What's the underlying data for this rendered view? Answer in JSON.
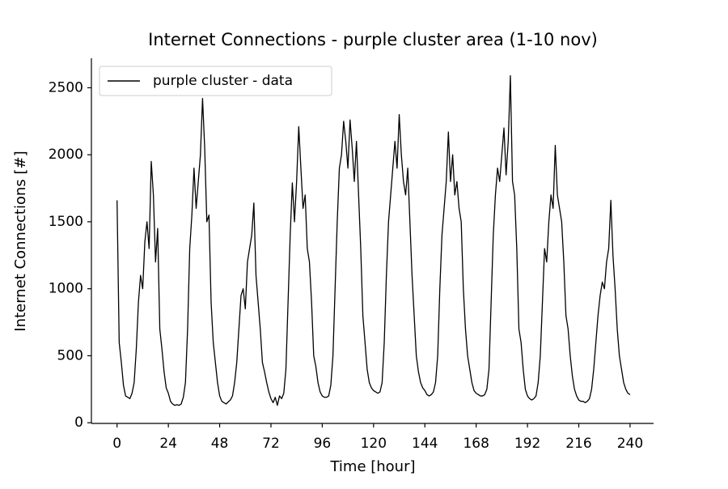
{
  "chart_data": {
    "type": "line",
    "title": "Internet Connections - purple cluster area (1-10 nov)",
    "xlabel": "Time [hour]",
    "ylabel": "Internet Connections [#]",
    "x": [
      0,
      1,
      2,
      3,
      4,
      5,
      6,
      7,
      8,
      9,
      10,
      11,
      12,
      13,
      14,
      15,
      16,
      17,
      18,
      19,
      20,
      21,
      22,
      23,
      24,
      25,
      26,
      27,
      28,
      29,
      30,
      31,
      32,
      33,
      34,
      35,
      36,
      37,
      38,
      39,
      40,
      41,
      42,
      43,
      44,
      45,
      46,
      47,
      48,
      49,
      50,
      51,
      52,
      53,
      54,
      55,
      56,
      57,
      58,
      59,
      60,
      61,
      62,
      63,
      64,
      65,
      66,
      67,
      68,
      69,
      70,
      71,
      72,
      73,
      74,
      75,
      76,
      77,
      78,
      79,
      80,
      81,
      82,
      83,
      84,
      85,
      86,
      87,
      88,
      89,
      90,
      91,
      92,
      93,
      94,
      95,
      96,
      97,
      98,
      99,
      100,
      101,
      102,
      103,
      104,
      105,
      106,
      107,
      108,
      109,
      110,
      111,
      112,
      113,
      114,
      115,
      116,
      117,
      118,
      119,
      120,
      121,
      122,
      123,
      124,
      125,
      126,
      127,
      128,
      129,
      130,
      131,
      132,
      133,
      134,
      135,
      136,
      137,
      138,
      139,
      140,
      141,
      142,
      143,
      144,
      145,
      146,
      147,
      148,
      149,
      150,
      151,
      152,
      153,
      154,
      155,
      156,
      157,
      158,
      159,
      160,
      161,
      162,
      163,
      164,
      165,
      166,
      167,
      168,
      169,
      170,
      171,
      172,
      173,
      174,
      175,
      176,
      177,
      178,
      179,
      180,
      181,
      182,
      183,
      184,
      185,
      186,
      187,
      188,
      189,
      190,
      191,
      192,
      193,
      194,
      195,
      196,
      197,
      198,
      199,
      200,
      201,
      202,
      203,
      204,
      205,
      206,
      207,
      208,
      209,
      210,
      211,
      212,
      213,
      214,
      215,
      216,
      217,
      218,
      219,
      220,
      221,
      222,
      223,
      224,
      225,
      226,
      227,
      228,
      229,
      230,
      231,
      232,
      233,
      234,
      235,
      236,
      237,
      238,
      239,
      240
    ],
    "series": [
      {
        "name": "purple cluster - data",
        "color": "#000000",
        "values": [
          1660,
          600,
          450,
          280,
          200,
          190,
          180,
          220,
          300,
          550,
          900,
          1100,
          1000,
          1350,
          1500,
          1300,
          1950,
          1700,
          1200,
          1450,
          700,
          550,
          380,
          260,
          220,
          160,
          140,
          130,
          135,
          130,
          140,
          190,
          300,
          700,
          1300,
          1550,
          1900,
          1600,
          1800,
          2000,
          2420,
          2050,
          1500,
          1550,
          900,
          600,
          450,
          300,
          200,
          160,
          150,
          140,
          155,
          170,
          200,
          300,
          450,
          700,
          950,
          1000,
          850,
          1200,
          1300,
          1400,
          1640,
          1100,
          900,
          700,
          450,
          380,
          300,
          230,
          180,
          150,
          190,
          130,
          200,
          180,
          220,
          400,
          900,
          1400,
          1790,
          1500,
          1800,
          2210,
          1900,
          1600,
          1700,
          1300,
          1200,
          900,
          500,
          420,
          300,
          230,
          200,
          190,
          190,
          200,
          280,
          500,
          1000,
          1500,
          1900,
          2000,
          2250,
          2100,
          1900,
          2260,
          2050,
          1800,
          2100,
          1700,
          1300,
          800,
          600,
          400,
          300,
          260,
          240,
          230,
          220,
          230,
          300,
          600,
          1100,
          1500,
          1700,
          1900,
          2100,
          1900,
          2300,
          2000,
          1800,
          1700,
          1900,
          1500,
          1100,
          800,
          500,
          380,
          300,
          260,
          240,
          210,
          200,
          210,
          230,
          300,
          500,
          1000,
          1400,
          1600,
          1800,
          2170,
          1800,
          2000,
          1700,
          1800,
          1600,
          1500,
          1000,
          700,
          500,
          400,
          300,
          240,
          220,
          210,
          200,
          200,
          210,
          250,
          400,
          900,
          1400,
          1700,
          1900,
          1800,
          2000,
          2200,
          1850,
          2100,
          2590,
          1800,
          1700,
          1300,
          700,
          600,
          400,
          250,
          200,
          180,
          170,
          180,
          200,
          300,
          500,
          900,
          1300,
          1200,
          1500,
          1700,
          1600,
          2070,
          1700,
          1600,
          1500,
          1200,
          800,
          700,
          500,
          350,
          250,
          200,
          170,
          160,
          160,
          150,
          160,
          180,
          250,
          400,
          600,
          800,
          950,
          1050,
          1000,
          1200,
          1300,
          1660,
          1250,
          1000,
          700,
          500,
          400,
          300,
          250,
          220,
          210
        ]
      }
    ],
    "xlim": [
      -12,
      251
    ],
    "ylim": [
      -5,
      2720
    ],
    "xticks": [
      0,
      24,
      48,
      72,
      96,
      120,
      144,
      168,
      192,
      216,
      240
    ],
    "yticks": [
      0,
      500,
      1000,
      1500,
      2000,
      2500
    ],
    "legend": "upper left"
  }
}
